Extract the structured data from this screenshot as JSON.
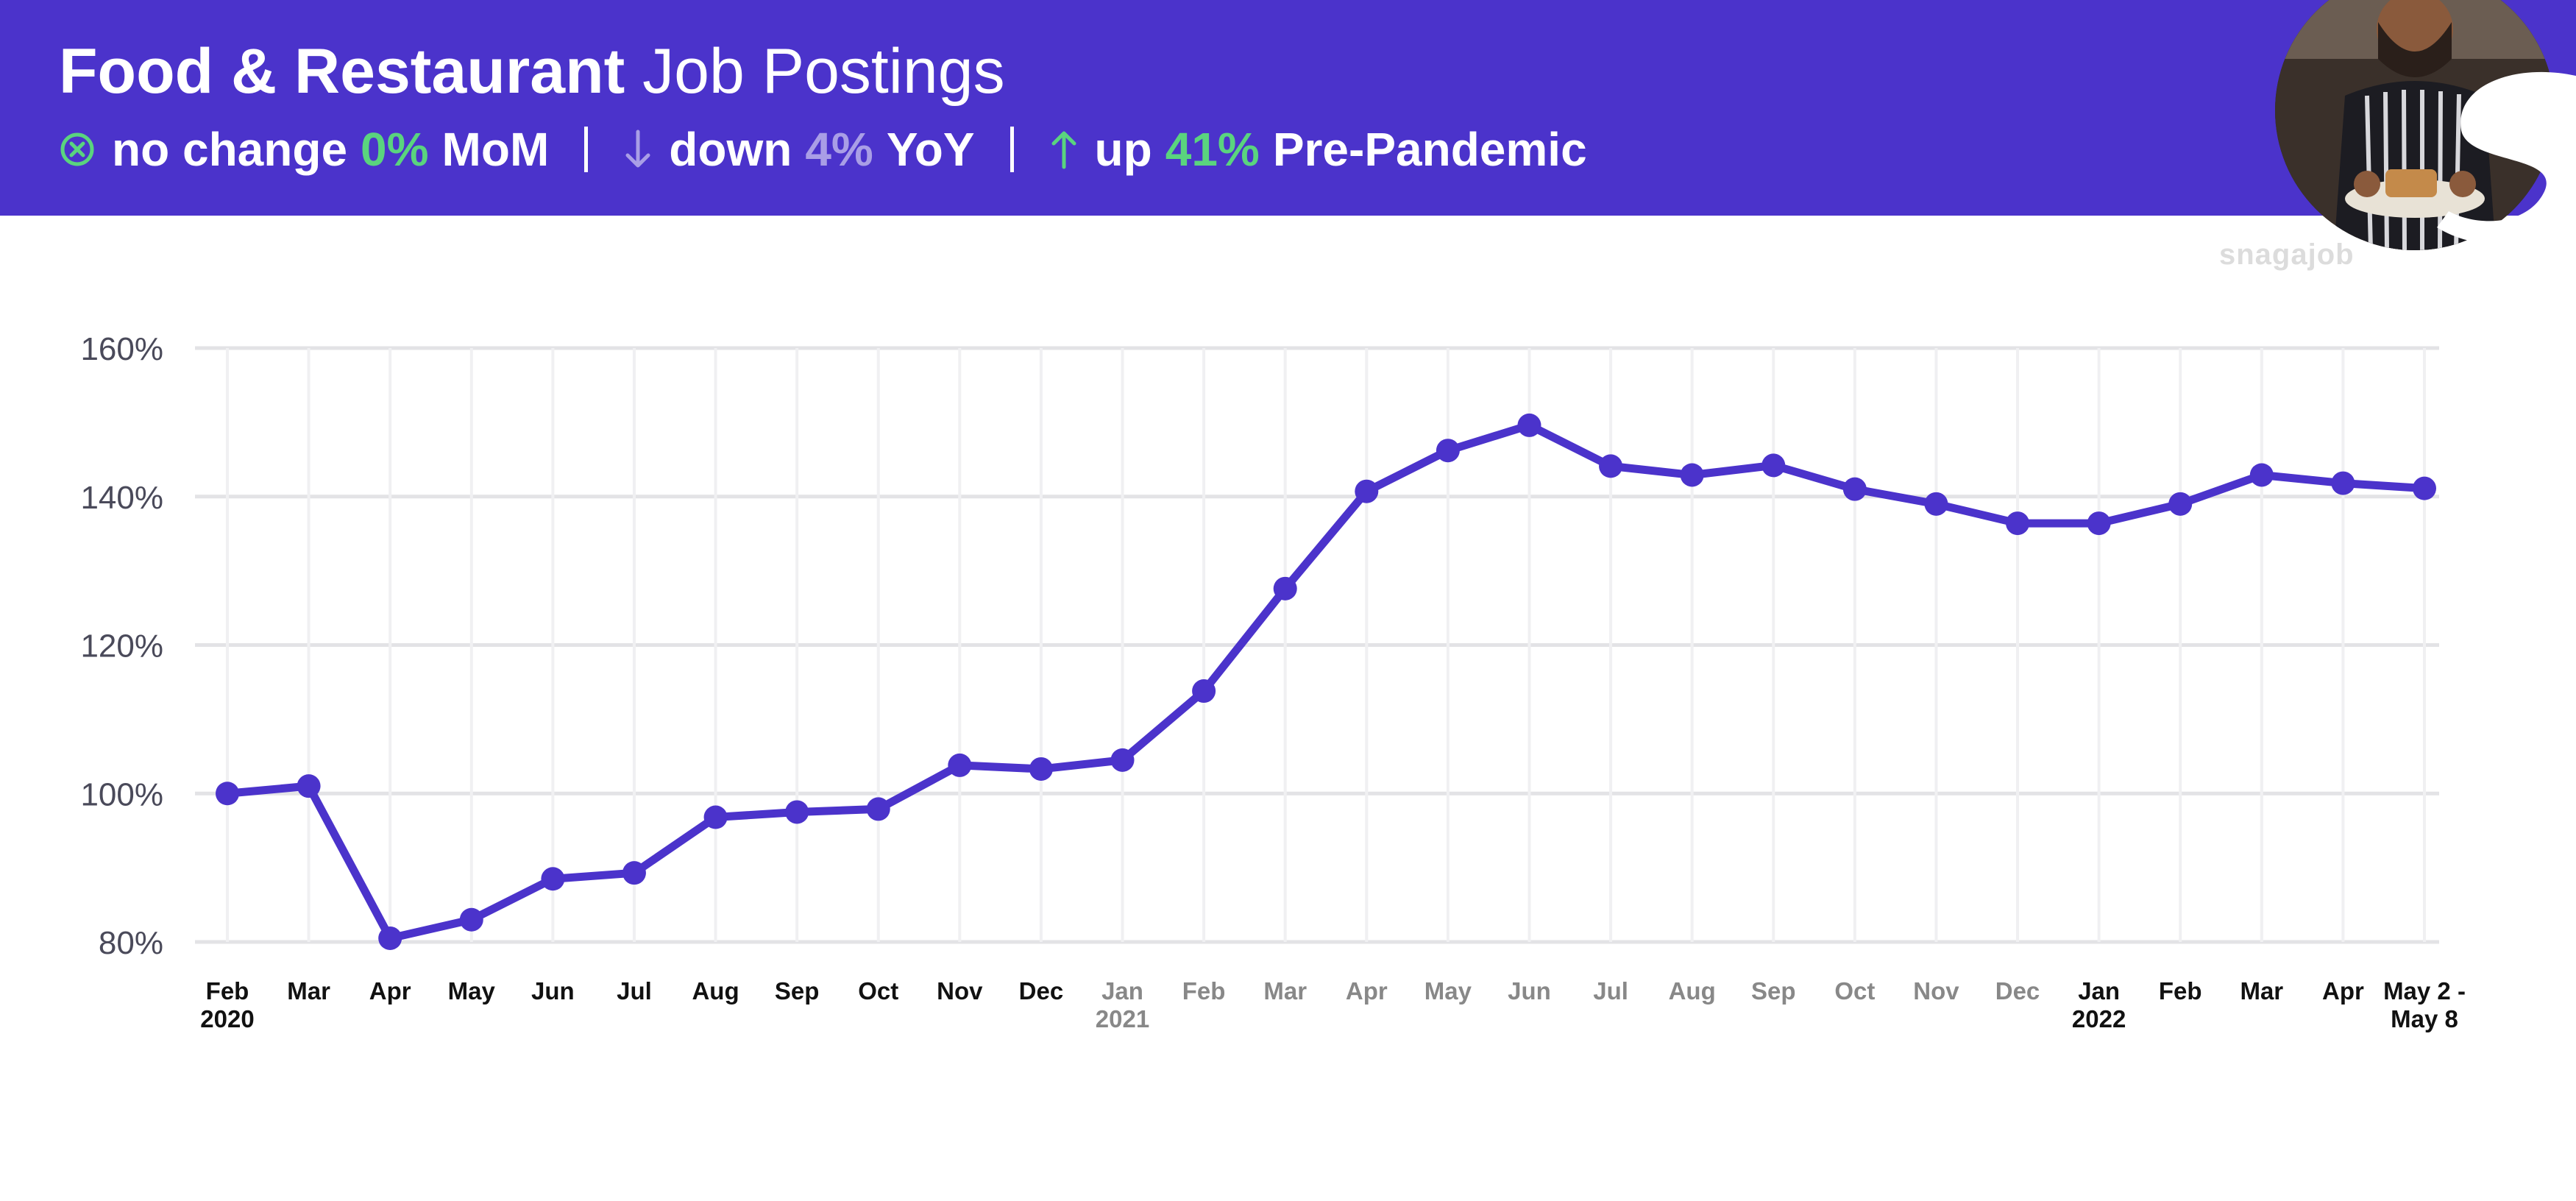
{
  "header": {
    "title_bold": "Food & Restaurant",
    "title_light": "Job Postings",
    "stats": [
      {
        "icon": "circle-x-icon",
        "prefix": "no change",
        "value": "0%",
        "suffix": "MoM",
        "value_color": "#5ad47e"
      },
      {
        "icon": "arrow-down-icon",
        "prefix": "down",
        "value": "4%",
        "suffix": "YoY",
        "value_color": "#a99ee6"
      },
      {
        "icon": "arrow-up-icon",
        "prefix": "up",
        "value": "41%",
        "suffix": "Pre-Pandemic",
        "value_color": "#5ad47e"
      }
    ]
  },
  "brand": {
    "logo_text": "snagajob"
  },
  "colors": {
    "header_bg": "#4b33cb",
    "line": "#4b33cb",
    "accent_green": "#5ad47e",
    "accent_lavender": "#a99ee6",
    "tick_dark": "#111111",
    "tick_gray": "#888888"
  },
  "chart_data": {
    "type": "line",
    "title": "",
    "xlabel": "",
    "ylabel": "",
    "ylim": [
      80,
      160
    ],
    "yticks": [
      80,
      100,
      120,
      140,
      160
    ],
    "ytick_labels": [
      "80%",
      "100%",
      "120%",
      "140%",
      "160%"
    ],
    "grid": true,
    "legend": "none",
    "x_labels": [
      {
        "line1": "Feb",
        "line2": "2020",
        "tone": "dark"
      },
      {
        "line1": "Mar",
        "line2": "",
        "tone": "dark"
      },
      {
        "line1": "Apr",
        "line2": "",
        "tone": "dark"
      },
      {
        "line1": "May",
        "line2": "",
        "tone": "dark"
      },
      {
        "line1": "Jun",
        "line2": "",
        "tone": "dark"
      },
      {
        "line1": "Jul",
        "line2": "",
        "tone": "dark"
      },
      {
        "line1": "Aug",
        "line2": "",
        "tone": "dark"
      },
      {
        "line1": "Sep",
        "line2": "",
        "tone": "dark"
      },
      {
        "line1": "Oct",
        "line2": "",
        "tone": "dark"
      },
      {
        "line1": "Nov",
        "line2": "",
        "tone": "dark"
      },
      {
        "line1": "Dec",
        "line2": "",
        "tone": "dark"
      },
      {
        "line1": "Jan",
        "line2": "2021",
        "tone": "gray"
      },
      {
        "line1": "Feb",
        "line2": "",
        "tone": "gray"
      },
      {
        "line1": "Mar",
        "line2": "",
        "tone": "gray"
      },
      {
        "line1": "Apr",
        "line2": "",
        "tone": "gray"
      },
      {
        "line1": "May",
        "line2": "",
        "tone": "gray"
      },
      {
        "line1": "Jun",
        "line2": "",
        "tone": "gray"
      },
      {
        "line1": "Jul",
        "line2": "",
        "tone": "gray"
      },
      {
        "line1": "Aug",
        "line2": "",
        "tone": "gray"
      },
      {
        "line1": "Sep",
        "line2": "",
        "tone": "gray"
      },
      {
        "line1": "Oct",
        "line2": "",
        "tone": "gray"
      },
      {
        "line1": "Nov",
        "line2": "",
        "tone": "gray"
      },
      {
        "line1": "Dec",
        "line2": "",
        "tone": "gray"
      },
      {
        "line1": "Jan",
        "line2": "2022",
        "tone": "dark"
      },
      {
        "line1": "Feb",
        "line2": "",
        "tone": "dark"
      },
      {
        "line1": "Mar",
        "line2": "",
        "tone": "dark"
      },
      {
        "line1": "Apr",
        "line2": "",
        "tone": "dark"
      },
      {
        "line1": "May 2 -",
        "line2": "May 8",
        "tone": "dark"
      }
    ],
    "series": [
      {
        "values": [
          100,
          101,
          80.5,
          83,
          88.5,
          89.3,
          96.8,
          97.5,
          97.9,
          103.8,
          103.3,
          104.5,
          113.8,
          127.6,
          140.7,
          146.2,
          149.6,
          144.1,
          142.9,
          144.2,
          141,
          139,
          136.4,
          136.4,
          139,
          142.9,
          141.8,
          141.1
        ]
      }
    ]
  }
}
